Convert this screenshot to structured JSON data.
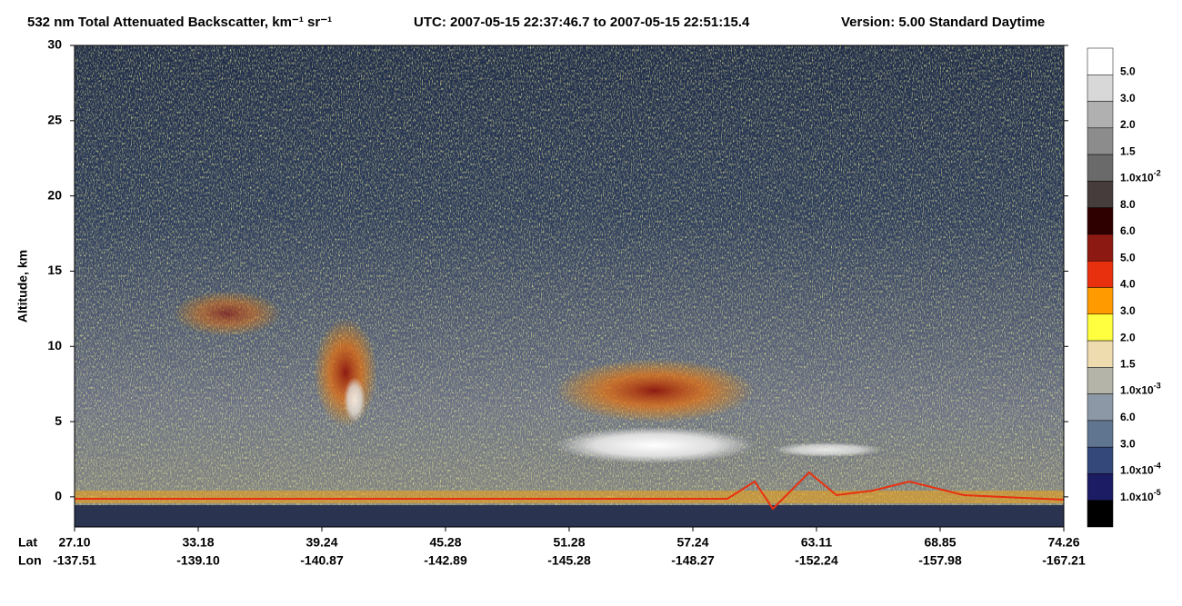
{
  "chart_data": {
    "type": "curtain",
    "title": "532 nm Total Attenuated Backscatter, km⁻¹ sr⁻¹",
    "time_range": "UTC:  2007-05-15 22:37:46.7  to  2007-05-15 22:51:15.4",
    "version": "Version: 5.00  Standard  Daytime",
    "y_label": "Altitude, km",
    "ylim": [
      -2,
      30
    ],
    "yticks": [
      0,
      5,
      10,
      15,
      20,
      25,
      30
    ],
    "row_labels": [
      "Lat",
      "Lon"
    ],
    "lat": [
      "27.10",
      "33.18",
      "39.24",
      "45.28",
      "51.28",
      "57.24",
      "63.11",
      "68.85",
      "74.26"
    ],
    "lon": [
      "-137.51",
      "-139.10",
      "-140.87",
      "-142.89",
      "-145.28",
      "-148.27",
      "-152.24",
      "-157.98",
      "-167.21"
    ],
    "colorbar_labels": [
      "5.0",
      "3.0",
      "2.0",
      "1.5",
      {
        "mantissa": "1.0x10",
        "exponent": "-2"
      },
      "8.0",
      "6.0",
      "5.0",
      "4.0",
      "3.0",
      "2.0",
      "1.5",
      {
        "mantissa": "1.0x10",
        "exponent": "-3"
      },
      "6.0",
      "3.0",
      {
        "mantissa": "1.0x10",
        "exponent": "-4"
      },
      {
        "mantissa": "1.0x10",
        "exponent": "-5"
      }
    ],
    "colorbar_colors": [
      "#ffffff",
      "#d8d8d8",
      "#b0b0b0",
      "#8c8c8c",
      "#6a6a6a",
      "#463c3c",
      "#2e0000",
      "#8c1a12",
      "#e8300e",
      "#ff9a00",
      "#ffff40",
      "#eedcae",
      "#b4b4a8",
      "#8c98a6",
      "#607590",
      "#34487a",
      "#1c1c64",
      "#000000"
    ]
  }
}
